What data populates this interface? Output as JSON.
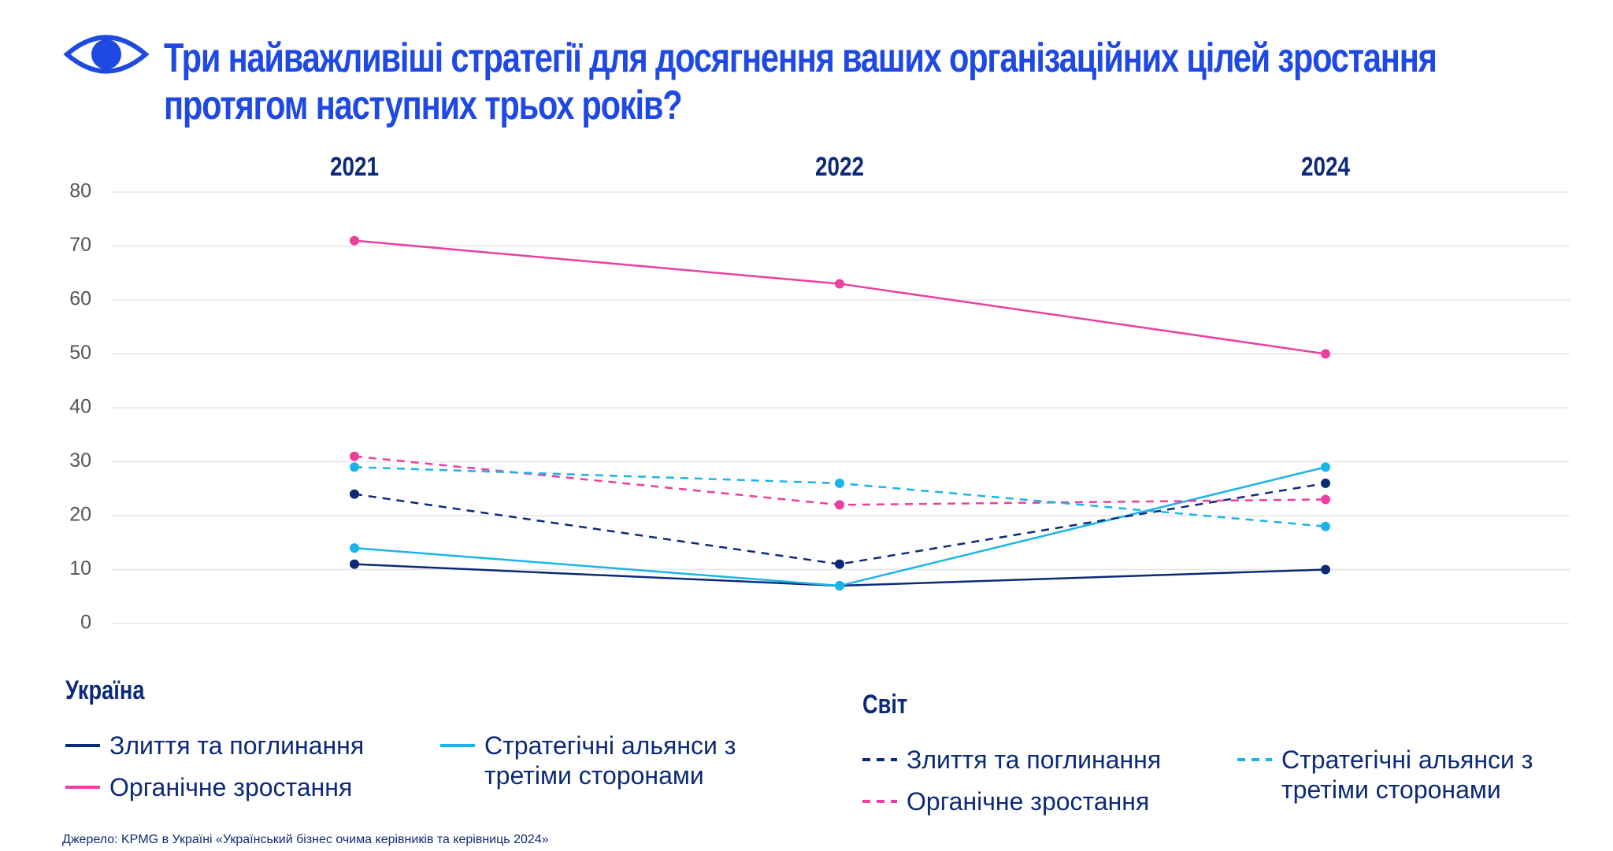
{
  "chart_data": {
    "type": "line",
    "title": "Три найважливіші стратегії  для досягнення ваших організаційних цілей зростання протягом наступних трьох років?",
    "categories": [
      "2021",
      "2022",
      "2024"
    ],
    "ylim": [
      0,
      80
    ],
    "yticks": [
      0,
      10,
      20,
      30,
      40,
      50,
      60,
      70,
      80
    ],
    "grid": true,
    "legend_groups": [
      {
        "title": "Україна",
        "line_style": "solid"
      },
      {
        "title": "Світ",
        "line_style": "dashed"
      }
    ],
    "series": [
      {
        "name": "Злиття та поглинання",
        "color": "#0c2a78",
        "line_style": "solid",
        "values": [
          11,
          7,
          10
        ]
      },
      {
        "name": "Органічне зростання",
        "color": "#ec3fa0",
        "line_style": "solid",
        "values": [
          71,
          63,
          50
        ]
      },
      {
        "name": "Стратегічні альянси з третіми сторонами",
        "color": "#1ab4e8",
        "line_style": "solid",
        "values": [
          14,
          7,
          29
        ]
      },
      {
        "name": "Злиття та поглинання",
        "color": "#0c2a78",
        "line_style": "dashed",
        "values": [
          24,
          11,
          26
        ]
      },
      {
        "name": "Органічне зростання",
        "color": "#ec3fa0",
        "line_style": "dashed",
        "values": [
          31,
          22,
          23
        ]
      },
      {
        "name": "Стратегічні альянси з третіми сторонами",
        "color": "#1ab4e8",
        "line_style": "dashed",
        "values": [
          29,
          26,
          18
        ]
      }
    ],
    "source": "Джерело: KPMG в Україні «Український бізнес очима керівників та керівниць 2024»"
  }
}
